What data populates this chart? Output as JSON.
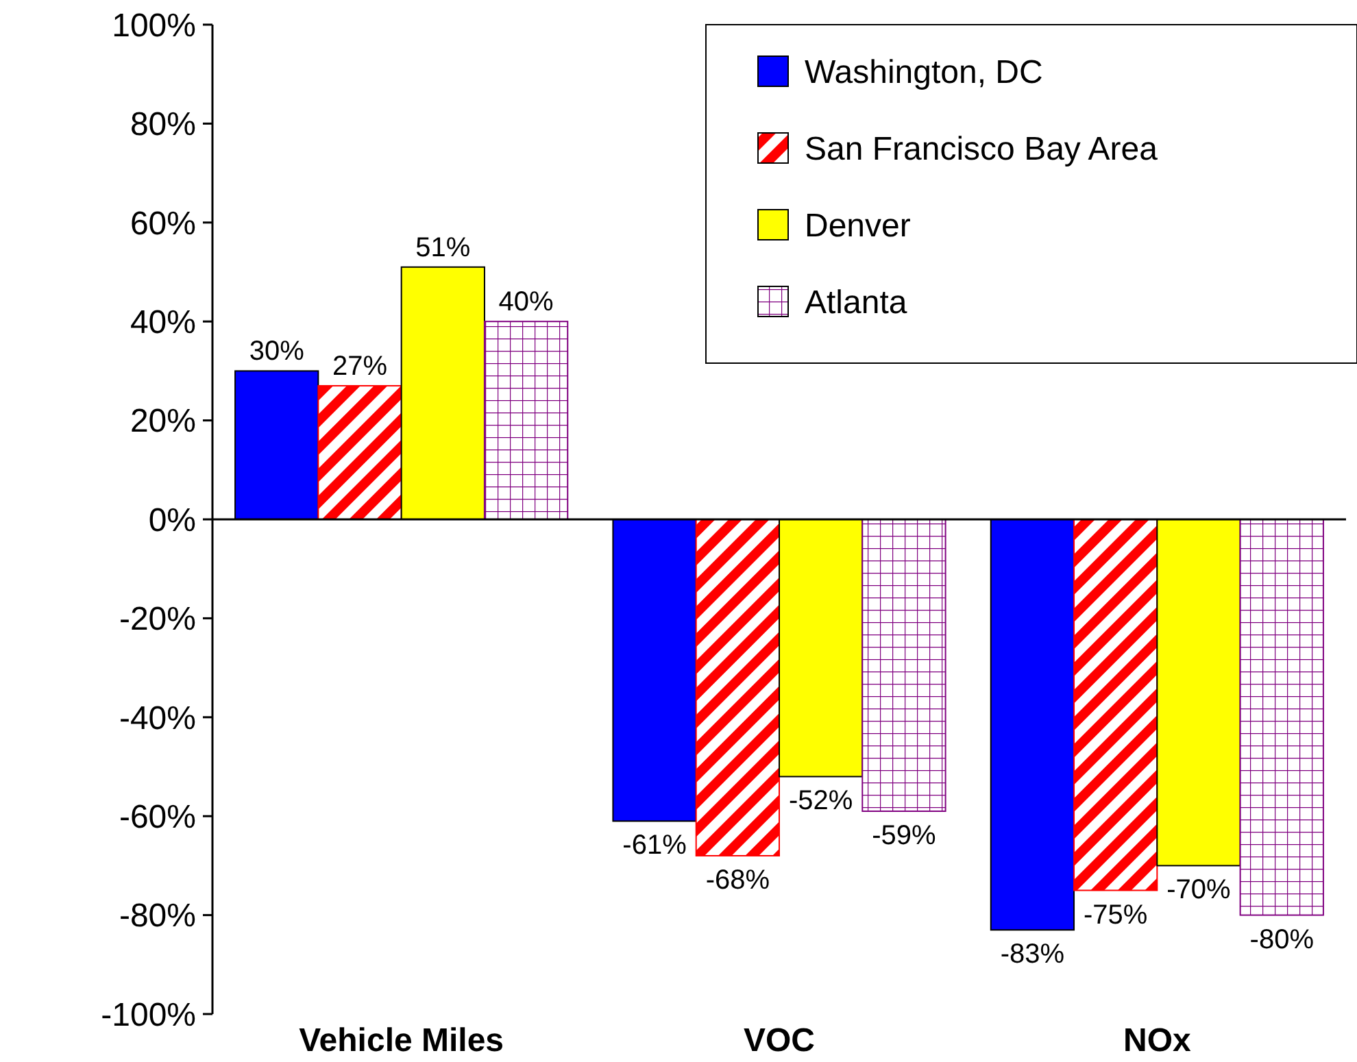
{
  "chart_data": {
    "type": "bar",
    "categories": [
      "Vehicle Miles",
      "VOC",
      "NOx"
    ],
    "series": [
      {
        "name": "Washington, DC",
        "color": "#0000ff",
        "values": [
          30,
          -61,
          -83
        ]
      },
      {
        "name": "San Francisco Bay Area",
        "color": "#ff0000",
        "values": [
          27,
          -68,
          -75
        ]
      },
      {
        "name": "Denver",
        "color": "#ffff00",
        "values": [
          51,
          -52,
          -70
        ]
      },
      {
        "name": "Atlanta",
        "color": "#800080",
        "values": [
          40,
          -59,
          -80
        ]
      }
    ],
    "ylim": [
      -100,
      100
    ],
    "yticks": [
      {
        "value": -100,
        "label": "-100%"
      },
      {
        "value": -80,
        "label": "-80%"
      },
      {
        "value": -60,
        "label": "-60%"
      },
      {
        "value": -40,
        "label": "-40%"
      },
      {
        "value": -20,
        "label": "-20%"
      },
      {
        "value": 0,
        "label": "0%"
      },
      {
        "value": 20,
        "label": "20%"
      },
      {
        "value": 40,
        "label": "40%"
      },
      {
        "value": 60,
        "label": "60%"
      },
      {
        "value": 80,
        "label": "80%"
      },
      {
        "value": 100,
        "label": "100%"
      }
    ],
    "value_labels": [
      [
        "30%",
        "-61%",
        "-83%"
      ],
      [
        "27%",
        "-68%",
        "-75%"
      ],
      [
        "51%",
        "-52%",
        "-70%"
      ],
      [
        "40%",
        "-59%",
        "-80%"
      ]
    ],
    "legend": "top right"
  }
}
